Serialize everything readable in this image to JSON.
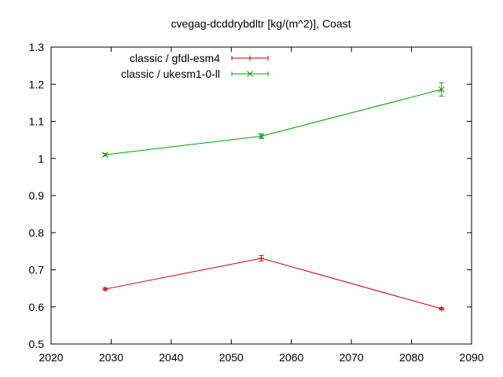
{
  "chart_data": {
    "type": "line",
    "title": "cvegag-dcddrybdltr [kg/(m^2)], Coast",
    "xlabel": "",
    "ylabel": "",
    "xlim": [
      2020,
      2090
    ],
    "ylim": [
      0.5,
      1.3
    ],
    "xticks": [
      "2020",
      "2030",
      "2040",
      "2050",
      "2060",
      "2070",
      "2080",
      "2090"
    ],
    "yticks": [
      "0.5",
      "0.6",
      "0.7",
      "0.8",
      "0.9",
      "1",
      "1.1",
      "1.2",
      "1.3"
    ],
    "grid": false,
    "legend_position": "top-left",
    "series": [
      {
        "name": "classic / gfdl-esm4",
        "color": "#cc0000",
        "marker": "plus",
        "x": [
          2029,
          2055,
          2085
        ],
        "y": [
          0.648,
          0.731,
          0.595
        ],
        "err": [
          0.003,
          0.007,
          0.003
        ]
      },
      {
        "name": "classic / ukesm1-0-ll",
        "color": "#00a000",
        "marker": "cross",
        "x": [
          2029,
          2055,
          2085
        ],
        "y": [
          1.01,
          1.06,
          1.186
        ],
        "err": [
          0.003,
          0.006,
          0.018
        ]
      }
    ]
  }
}
